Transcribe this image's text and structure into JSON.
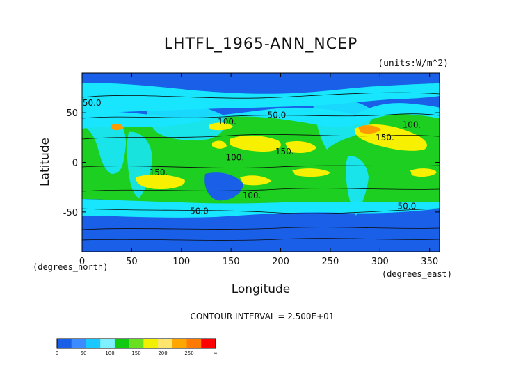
{
  "chart_data": {
    "type": "contour map",
    "title": "LHTFL_1965-ANN_NCEP",
    "units": "(units:W/m^2)",
    "xlabel": "Longitude",
    "ylabel": "Latitude",
    "x_unit_label": "(degrees_east)",
    "y_unit_label": "(degrees_north)",
    "xlim": [
      0,
      360
    ],
    "ylim": [
      -90,
      90
    ],
    "x_ticks": [
      0,
      50,
      100,
      150,
      200,
      250,
      300,
      350
    ],
    "y_ticks": [
      -50,
      0,
      50
    ],
    "contour_interval_text": "CONTOUR INTERVAL = 2.500E+01",
    "contour_labels": [
      {
        "text": "50.0",
        "lon": 10,
        "lat": 57
      },
      {
        "text": "50.0",
        "lon": 196,
        "lat": 45
      },
      {
        "text": "100.",
        "lon": 146,
        "lat": 38
      },
      {
        "text": "100.",
        "lon": 332,
        "lat": 35
      },
      {
        "text": "150.",
        "lon": 305,
        "lat": 22
      },
      {
        "text": "150.",
        "lon": 204,
        "lat": 8
      },
      {
        "text": "100.",
        "lon": 154,
        "lat": 2
      },
      {
        "text": "150.",
        "lon": 77,
        "lat": -13
      },
      {
        "text": "100.",
        "lon": 171,
        "lat": -36
      },
      {
        "text": "50.0",
        "lon": 118,
        "lat": -52
      },
      {
        "text": "50.0",
        "lon": 327,
        "lat": -47
      }
    ],
    "colorbar": {
      "levels": [
        "0",
        "50",
        "100",
        "150",
        "200",
        "250",
        "∞"
      ],
      "colors": [
        "#1a5fe8",
        "#3d8cff",
        "#18c8ff",
        "#7ff0ff",
        "#12c912",
        "#68e020",
        "#f0f000",
        "#ffe46e",
        "#ffa600",
        "#ff7a00",
        "#ff0000"
      ]
    },
    "field_colors": {
      "low": "#1a5fe8",
      "mid_low": "#18e6ff",
      "mid": "#1ccf20",
      "high": "#f7f000",
      "very_high": "#ff9900"
    },
    "grid": false
  }
}
